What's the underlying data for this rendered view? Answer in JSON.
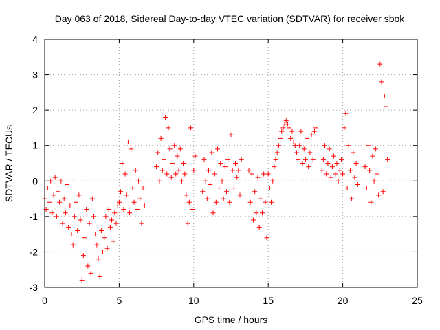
{
  "chart_data": {
    "type": "scatter",
    "title": "Day 063 of 2018, Sidereal Day-to-day VTEC variation (SDTVAR) for receiver sbok",
    "xlabel": "GPS time / hours",
    "ylabel": "SDTVAR / TECUs",
    "xlim": [
      0,
      25
    ],
    "ylim": [
      -3,
      4
    ],
    "x_ticks": [
      "0",
      "5",
      "10",
      "15",
      "20",
      "25"
    ],
    "y_ticks": [
      "-3",
      "-2",
      "-1",
      "0",
      "1",
      "2",
      "3",
      "4"
    ],
    "grid": true,
    "marker": "+",
    "marker_color": "#ff0000",
    "series": [
      {
        "name": "SDTVAR",
        "points": [
          [
            0.0,
            -0.5
          ],
          [
            0.1,
            -0.8
          ],
          [
            0.2,
            -0.2
          ],
          [
            0.3,
            -0.6
          ],
          [
            0.4,
            0.0
          ],
          [
            0.5,
            -0.9
          ],
          [
            0.6,
            -0.4
          ],
          [
            0.7,
            0.1
          ],
          [
            0.8,
            -1.0
          ],
          [
            0.9,
            -0.3
          ],
          [
            1.0,
            -0.6
          ],
          [
            1.1,
            0.0
          ],
          [
            1.2,
            -1.2
          ],
          [
            1.3,
            -0.5
          ],
          [
            1.4,
            -0.9
          ],
          [
            1.5,
            -0.1
          ],
          [
            1.6,
            -1.3
          ],
          [
            1.7,
            -0.7
          ],
          [
            1.8,
            -1.5
          ],
          [
            1.9,
            -1.8
          ],
          [
            2.0,
            -1.0
          ],
          [
            2.1,
            -0.6
          ],
          [
            2.2,
            -1.4
          ],
          [
            2.3,
            -0.4
          ],
          [
            2.4,
            -1.1
          ],
          [
            2.5,
            -2.8
          ],
          [
            2.6,
            -2.1
          ],
          [
            2.7,
            -1.6
          ],
          [
            2.8,
            -0.8
          ],
          [
            2.9,
            -2.4
          ],
          [
            3.0,
            -1.2
          ],
          [
            3.1,
            -2.6
          ],
          [
            3.2,
            -0.5
          ],
          [
            3.3,
            -1.0
          ],
          [
            3.4,
            -1.5
          ],
          [
            3.5,
            -1.8
          ],
          [
            3.6,
            -2.2
          ],
          [
            3.7,
            -2.7
          ],
          [
            3.8,
            -1.4
          ],
          [
            3.9,
            -2.0
          ],
          [
            4.0,
            -1.6
          ],
          [
            4.1,
            -1.0
          ],
          [
            4.2,
            -1.9
          ],
          [
            4.3,
            -0.8
          ],
          [
            4.4,
            -1.3
          ],
          [
            4.5,
            -1.1
          ],
          [
            4.6,
            -1.7
          ],
          [
            4.7,
            -0.9
          ],
          [
            4.8,
            -1.2
          ],
          [
            4.9,
            -0.7
          ],
          [
            5.0,
            -0.6
          ],
          [
            5.1,
            -0.3
          ],
          [
            5.2,
            0.5
          ],
          [
            5.3,
            -0.8
          ],
          [
            5.4,
            0.2
          ],
          [
            5.5,
            -0.4
          ],
          [
            5.6,
            1.1
          ],
          [
            5.7,
            -0.9
          ],
          [
            5.8,
            0.9
          ],
          [
            5.9,
            -0.2
          ],
          [
            6.0,
            -0.6
          ],
          [
            6.1,
            0.3
          ],
          [
            6.2,
            -0.8
          ],
          [
            6.3,
            0.0
          ],
          [
            6.4,
            -0.5
          ],
          [
            6.5,
            -1.2
          ],
          [
            6.6,
            -0.2
          ],
          [
            6.7,
            -0.7
          ],
          [
            7.5,
            0.4
          ],
          [
            7.6,
            0.8
          ],
          [
            7.7,
            0.0
          ],
          [
            7.8,
            1.2
          ],
          [
            7.9,
            0.3
          ],
          [
            8.0,
            0.6
          ],
          [
            8.1,
            1.8
          ],
          [
            8.2,
            0.2
          ],
          [
            8.3,
            1.5
          ],
          [
            8.4,
            0.9
          ],
          [
            8.5,
            0.1
          ],
          [
            8.6,
            0.5
          ],
          [
            8.7,
            1.0
          ],
          [
            8.8,
            0.2
          ],
          [
            8.9,
            0.7
          ],
          [
            9.0,
            0.3
          ],
          [
            9.1,
            0.9
          ],
          [
            9.2,
            0.0
          ],
          [
            9.3,
            0.5
          ],
          [
            9.4,
            0.2
          ],
          [
            9.5,
            -0.4
          ],
          [
            9.6,
            -1.2
          ],
          [
            9.7,
            -0.6
          ],
          [
            9.8,
            1.5
          ],
          [
            9.9,
            -0.8
          ],
          [
            10.0,
            0.3
          ],
          [
            10.1,
            0.7
          ],
          [
            10.6,
            -0.3
          ],
          [
            10.7,
            0.6
          ],
          [
            10.8,
            0.0
          ],
          [
            10.9,
            -0.5
          ],
          [
            11.0,
            0.3
          ],
          [
            11.1,
            -0.1
          ],
          [
            11.2,
            0.8
          ],
          [
            11.3,
            -0.9
          ],
          [
            11.4,
            0.2
          ],
          [
            11.5,
            -0.6
          ],
          [
            11.6,
            0.9
          ],
          [
            11.7,
            -0.2
          ],
          [
            11.8,
            0.5
          ],
          [
            11.9,
            0.0
          ],
          [
            12.0,
            -0.5
          ],
          [
            12.1,
            0.4
          ],
          [
            12.2,
            -0.3
          ],
          [
            12.3,
            0.6
          ],
          [
            12.4,
            -0.6
          ],
          [
            12.5,
            1.3
          ],
          [
            12.6,
            0.3
          ],
          [
            12.7,
            -0.2
          ],
          [
            12.8,
            0.5
          ],
          [
            12.9,
            0.1
          ],
          [
            13.0,
            0.3
          ],
          [
            13.1,
            -0.4
          ],
          [
            13.2,
            0.6
          ],
          [
            13.7,
            0.3
          ],
          [
            13.8,
            -0.6
          ],
          [
            13.9,
            0.2
          ],
          [
            14.0,
            -1.1
          ],
          [
            14.1,
            -0.3
          ],
          [
            14.2,
            -0.9
          ],
          [
            14.3,
            0.1
          ],
          [
            14.4,
            -1.3
          ],
          [
            14.5,
            -0.5
          ],
          [
            14.6,
            -0.9
          ],
          [
            14.7,
            0.2
          ],
          [
            14.8,
            -0.6
          ],
          [
            14.9,
            -1.6
          ],
          [
            15.0,
            0.2
          ],
          [
            15.1,
            -0.2
          ],
          [
            15.2,
            -0.6
          ],
          [
            15.3,
            0.0
          ],
          [
            15.4,
            0.4
          ],
          [
            15.5,
            0.6
          ],
          [
            15.6,
            0.8
          ],
          [
            15.7,
            1.0
          ],
          [
            15.8,
            1.2
          ],
          [
            15.9,
            1.4
          ],
          [
            16.0,
            1.5
          ],
          [
            16.1,
            1.6
          ],
          [
            16.2,
            1.7
          ],
          [
            16.3,
            1.6
          ],
          [
            16.4,
            1.5
          ],
          [
            16.5,
            1.2
          ],
          [
            16.6,
            1.4
          ],
          [
            16.7,
            1.1
          ],
          [
            16.8,
            1.0
          ],
          [
            16.9,
            0.8
          ],
          [
            17.0,
            0.6
          ],
          [
            17.1,
            1.0
          ],
          [
            17.2,
            1.4
          ],
          [
            17.3,
            0.5
          ],
          [
            17.4,
            0.9
          ],
          [
            17.5,
            0.6
          ],
          [
            17.6,
            1.2
          ],
          [
            17.7,
            0.4
          ],
          [
            17.8,
            0.8
          ],
          [
            17.9,
            1.3
          ],
          [
            18.0,
            0.6
          ],
          [
            18.1,
            1.4
          ],
          [
            18.2,
            1.5
          ],
          [
            18.6,
            0.3
          ],
          [
            18.7,
            0.6
          ],
          [
            18.8,
            1.0
          ],
          [
            18.9,
            0.2
          ],
          [
            19.0,
            0.5
          ],
          [
            19.1,
            0.9
          ],
          [
            19.2,
            0.1
          ],
          [
            19.3,
            0.4
          ],
          [
            19.4,
            0.7
          ],
          [
            19.5,
            0.2
          ],
          [
            19.6,
            0.5
          ],
          [
            19.7,
            0.0
          ],
          [
            19.8,
            0.3
          ],
          [
            19.9,
            0.6
          ],
          [
            20.0,
            0.2
          ],
          [
            20.1,
            1.5
          ],
          [
            20.2,
            1.9
          ],
          [
            20.3,
            -0.2
          ],
          [
            20.4,
            1.0
          ],
          [
            20.5,
            0.3
          ],
          [
            20.6,
            -0.5
          ],
          [
            20.7,
            0.8
          ],
          [
            20.8,
            0.1
          ],
          [
            20.9,
            0.5
          ],
          [
            21.0,
            -0.1
          ],
          [
            21.5,
            0.4
          ],
          [
            21.6,
            -0.2
          ],
          [
            21.7,
            1.0
          ],
          [
            21.8,
            0.3
          ],
          [
            21.9,
            -0.6
          ],
          [
            22.0,
            0.7
          ],
          [
            22.1,
            0.0
          ],
          [
            22.2,
            0.9
          ],
          [
            22.3,
            0.2
          ],
          [
            22.4,
            -0.4
          ],
          [
            22.5,
            3.3
          ],
          [
            22.6,
            2.8
          ],
          [
            22.7,
            -0.3
          ],
          [
            22.8,
            2.4
          ],
          [
            22.9,
            2.1
          ],
          [
            23.0,
            0.6
          ]
        ]
      }
    ]
  }
}
